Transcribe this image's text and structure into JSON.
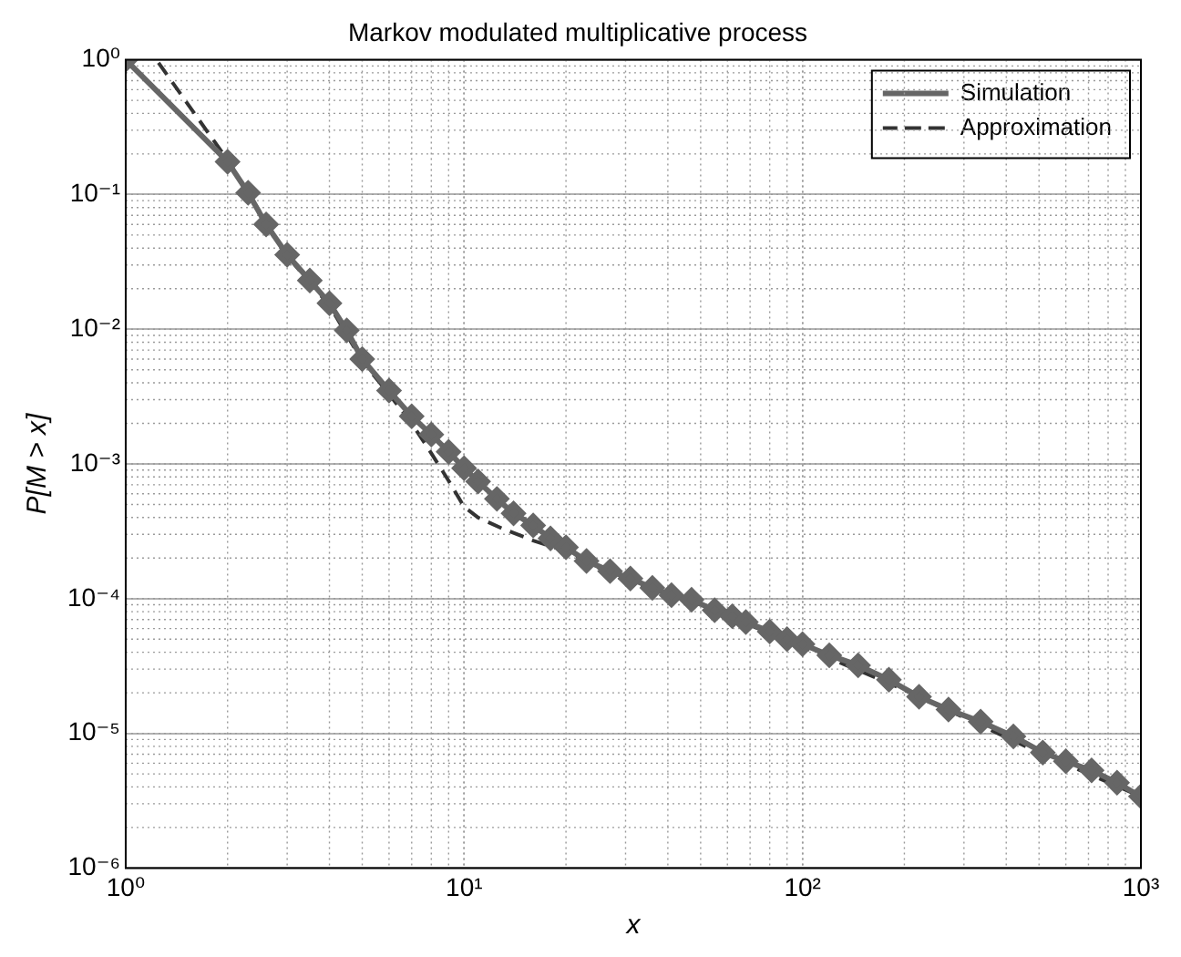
{
  "chart_data": {
    "type": "line",
    "title": "Markov modulated multiplicative process",
    "xlabel": "x",
    "ylabel": "P[M > x]",
    "log": "xy",
    "grid": true,
    "legend": "top right",
    "xlim": [
      1,
      1000
    ],
    "xticks": [
      {
        "value": 1,
        "label": "10⁰"
      },
      {
        "value": 10,
        "label": "10¹"
      },
      {
        "value": 100,
        "label": "10²"
      },
      {
        "value": 1000,
        "label": "10³"
      }
    ],
    "ylim": [
      1e-06,
      1
    ],
    "yticks": [
      {
        "value": 1e-06,
        "label": "10⁻⁶"
      },
      {
        "value": 1e-05,
        "label": "10⁻⁵"
      },
      {
        "value": 0.0001,
        "label": "10⁻⁴"
      },
      {
        "value": 0.001,
        "label": "10⁻³"
      },
      {
        "value": 0.01,
        "label": "10⁻²"
      },
      {
        "value": 0.1,
        "label": "10⁻¹"
      },
      {
        "value": 1,
        "label": "10⁰"
      }
    ],
    "series": [
      {
        "name": "Simulation",
        "color": "#666666",
        "marker": "diamond",
        "line_style": "solid",
        "x": [
          1,
          2,
          2.3,
          2.6,
          3,
          3.5,
          4,
          4.5,
          5,
          6,
          7,
          8,
          9,
          10,
          11,
          12.5,
          14,
          16,
          18,
          20,
          23,
          27,
          31,
          36,
          41,
          47,
          55,
          62,
          68,
          80,
          90,
          100,
          120,
          146,
          180,
          221,
          270,
          336,
          420,
          513,
          600,
          715,
          850,
          1000
        ],
        "values": [
          1,
          0.175,
          0.103,
          0.06,
          0.0357,
          0.023,
          0.0156,
          0.0098,
          0.006,
          0.0035,
          0.00226,
          0.00165,
          0.00123,
          0.00093,
          0.00074,
          0.00055,
          0.00043,
          0.00035,
          0.00028,
          0.00024,
          0.00019,
          0.00016,
          0.000141,
          0.00012,
          0.000106,
          9.8e-05,
          8.2e-05,
          7.4e-05,
          6.7e-05,
          5.7e-05,
          5e-05,
          4.6e-05,
          3.8e-05,
          3.2e-05,
          2.5e-05,
          1.87e-05,
          1.5e-05,
          1.22e-05,
          9.5e-06,
          7.2e-06,
          6.2e-06,
          5.3e-06,
          4.3e-06,
          3.4e-06
        ]
      },
      {
        "name": "Approximation",
        "color": "#333333",
        "marker": "none",
        "line_style": "dashed",
        "x": [
          1.25,
          2,
          3,
          4,
          5,
          6,
          7,
          8,
          9,
          10,
          11,
          13,
          16,
          20,
          30,
          50,
          100,
          200,
          500,
          1000
        ],
        "values": [
          0.95,
          0.18,
          0.035,
          0.015,
          0.0058,
          0.0033,
          0.002,
          0.0012,
          0.00075,
          0.00048,
          0.0004,
          0.00033,
          0.00027,
          0.000225,
          0.000135,
          9e-05,
          4.4e-05,
          2.1e-05,
          7.2e-06,
          3.4e-06
        ]
      }
    ]
  }
}
